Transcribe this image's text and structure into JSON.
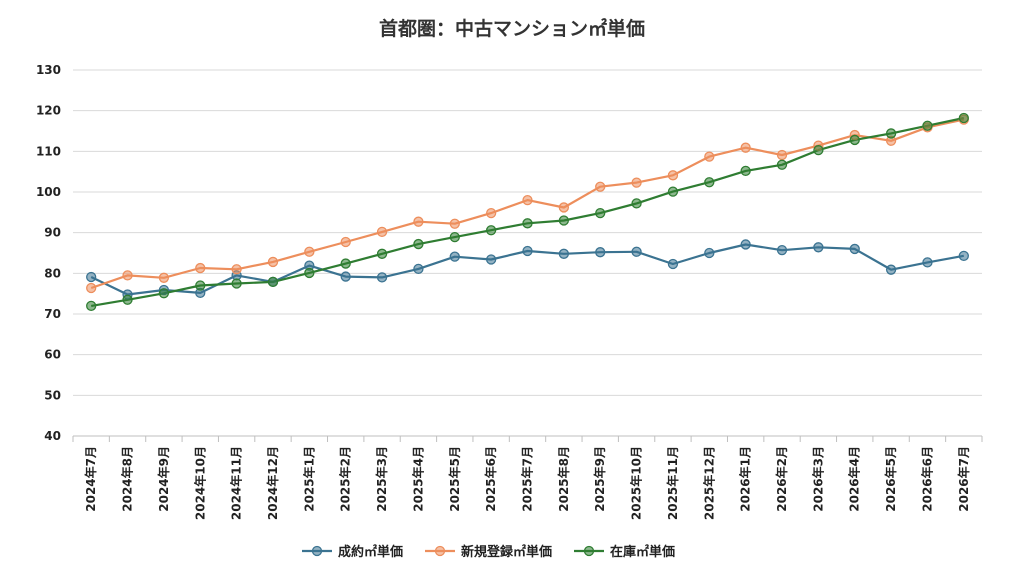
{
  "chart_data": {
    "type": "line",
    "title": "首都圏：中古マンション㎡単価",
    "xlabel": "",
    "ylabel": "",
    "ylim": [
      40,
      130
    ],
    "yticks": [
      40,
      50,
      60,
      70,
      80,
      90,
      100,
      110,
      120,
      130
    ],
    "grid": true,
    "legend_position": "bottom",
    "categories": [
      "2024年7月",
      "2024年8月",
      "2024年9月",
      "2024年10月",
      "2024年11月",
      "2024年12月",
      "2025年1月",
      "2025年2月",
      "2025年3月",
      "2025年4月",
      "2025年5月",
      "2025年6月",
      "2025年7月",
      "2025年8月",
      "2025年9月",
      "2025年10月",
      "2025年11月",
      "2025年12月",
      "2026年1月",
      "2026年2月",
      "2026年3月",
      "2026年4月",
      "2026年5月",
      "2026年6月",
      "2026年7月"
    ],
    "series": [
      {
        "name": "成約㎡単価",
        "color": "#3b7391",
        "values": [
          79.1,
          74.8,
          75.9,
          75.2,
          79.5,
          77.9,
          81.9,
          79.2,
          79.0,
          81.1,
          84.1,
          83.4,
          85.5,
          84.8,
          85.2,
          85.3,
          82.3,
          85.0,
          87.1,
          85.7,
          86.4,
          86.0,
          80.9,
          82.7,
          84.3
        ]
      },
      {
        "name": "新規登録㎡単価",
        "color": "#ed8e5c",
        "values": [
          76.4,
          79.5,
          78.9,
          81.3,
          81.0,
          82.8,
          85.3,
          87.7,
          90.2,
          92.7,
          92.2,
          94.8,
          98.0,
          96.2,
          101.3,
          102.3,
          104.1,
          108.7,
          110.9,
          109.1,
          111.4,
          114.0,
          112.6,
          115.9,
          117.8
        ]
      },
      {
        "name": "在庫㎡単価",
        "color": "#2f7d32",
        "values": [
          72.0,
          73.5,
          75.1,
          77.0,
          77.5,
          77.9,
          80.1,
          82.4,
          84.8,
          87.2,
          88.9,
          90.6,
          92.3,
          93.0,
          94.8,
          97.2,
          100.1,
          102.4,
          105.2,
          106.7,
          110.3,
          112.8,
          114.4,
          116.3,
          118.2
        ]
      }
    ]
  }
}
